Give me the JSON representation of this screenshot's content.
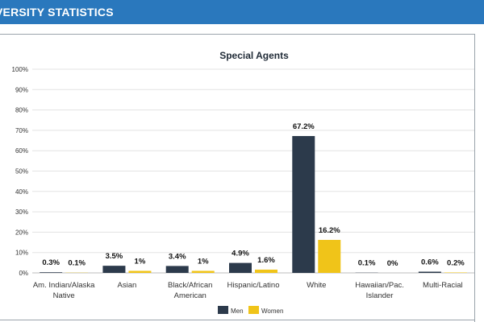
{
  "header": {
    "title": "VERSITY STATISTICS"
  },
  "chart_data": {
    "type": "bar",
    "title": "Special Agents",
    "categories": [
      [
        "Am. Indian/Alaska",
        "Native"
      ],
      [
        "Asian"
      ],
      [
        "Black/African",
        "American"
      ],
      [
        "Hispanic/Latino"
      ],
      [
        "White"
      ],
      [
        "Hawaiian/Pac.",
        "Islander"
      ],
      [
        "Multi-Racial"
      ]
    ],
    "series": [
      {
        "name": "Men",
        "color": "#2c3a4b",
        "values": [
          0.3,
          3.5,
          3.4,
          4.9,
          67.2,
          0.1,
          0.6
        ],
        "labels": [
          "0.3%",
          "3.5%",
          "3.4%",
          "4.9%",
          "67.2%",
          "0.1%",
          "0.6%"
        ]
      },
      {
        "name": "Women",
        "color": "#f0c419",
        "values": [
          0.1,
          1,
          1,
          1.6,
          16.2,
          0,
          0.2
        ],
        "labels": [
          "0.1%",
          "1%",
          "1%",
          "1.6%",
          "16.2%",
          "0%",
          "0.2%"
        ]
      }
    ],
    "ylim": [
      0,
      100
    ],
    "yticks": [
      "0%",
      "10%",
      "20%",
      "30%",
      "40%",
      "50%",
      "60%",
      "70%",
      "80%",
      "90%",
      "100%"
    ],
    "grid": true,
    "legend": "bottom-center"
  }
}
